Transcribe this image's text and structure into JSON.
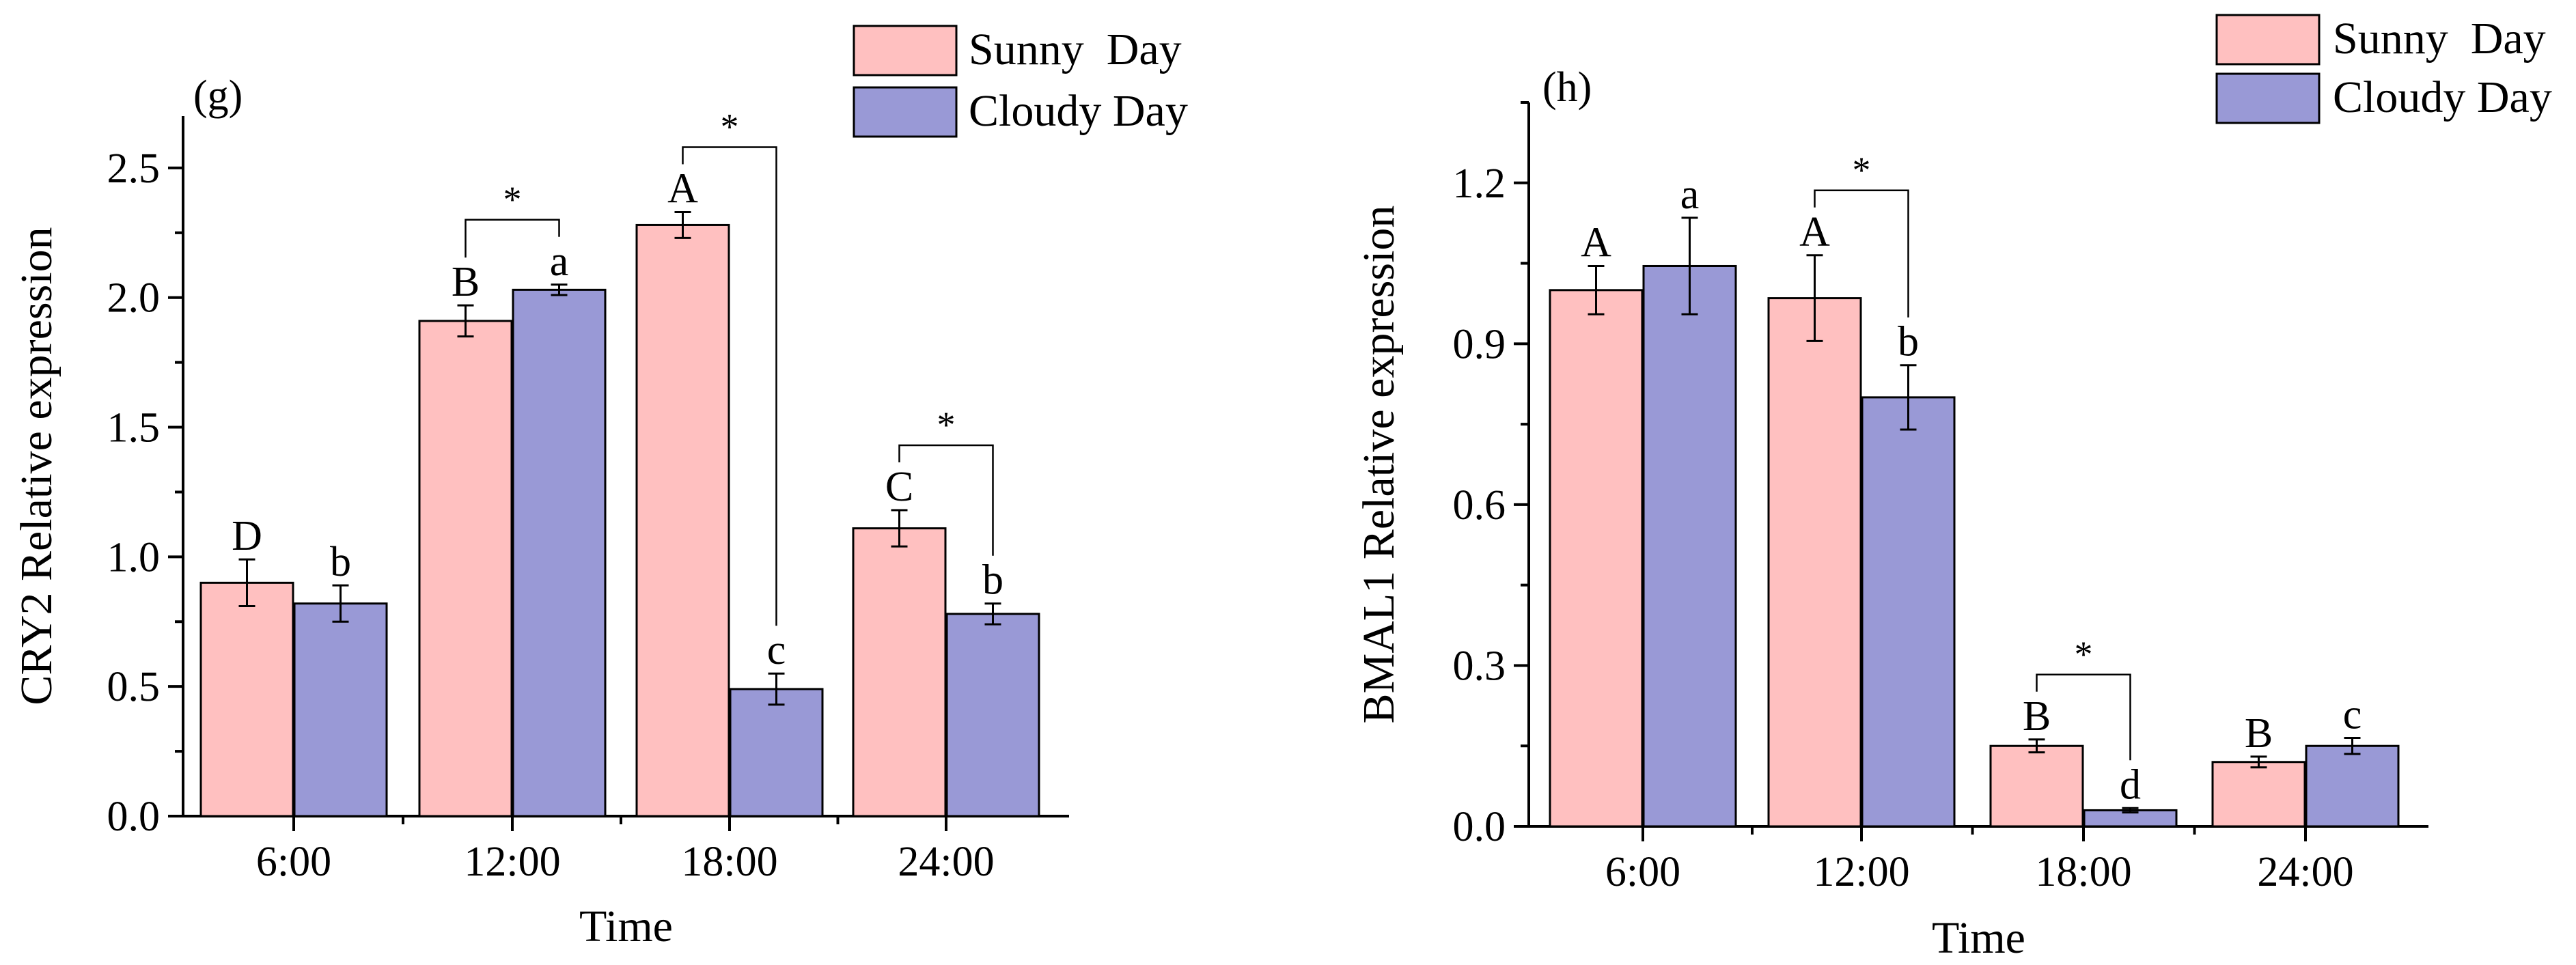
{
  "colors": {
    "sunny": "#FFC0C0",
    "cloudy": "#9999D6"
  },
  "chart_data": [
    {
      "type": "bar",
      "panel_label": "(g)",
      "title": "",
      "xlabel": "Time",
      "ylabel": "CRY2 Relative expression",
      "ylim": [
        0,
        2.7
      ],
      "yticks": [
        "0.0",
        "0.5",
        "1.0",
        "1.5",
        "2.0",
        "2.5"
      ],
      "ytick_values": [
        0,
        0.5,
        1.0,
        1.5,
        2.0,
        2.5
      ],
      "categories": [
        "6:00",
        "12:00",
        "18:00",
        "24:00"
      ],
      "legend_position": "top-right",
      "series": [
        {
          "name": "Sunny  Day",
          "values": [
            0.9,
            1.91,
            2.28,
            1.11
          ],
          "errors": [
            0.09,
            0.06,
            0.05,
            0.07
          ],
          "letters": [
            "D",
            "B",
            "A",
            "C"
          ]
        },
        {
          "name": "Cloudy Day",
          "values": [
            0.82,
            2.03,
            0.49,
            0.78
          ],
          "errors": [
            0.07,
            0.02,
            0.06,
            0.04
          ],
          "letters": [
            "b",
            "a",
            "c",
            "b"
          ]
        }
      ],
      "significance": [
        {
          "category_index": 1,
          "label": "*"
        },
        {
          "category_index": 2,
          "label": "*"
        },
        {
          "category_index": 3,
          "label": "*"
        }
      ]
    },
    {
      "type": "bar",
      "panel_label": "(h)",
      "title": "",
      "xlabel": "Time",
      "ylabel": "BMAL1 Relative expression",
      "ylim": [
        0,
        1.35
      ],
      "yticks": [
        "0.0",
        "0.3",
        "0.6",
        "0.9",
        "1.2"
      ],
      "ytick_values": [
        0,
        0.3,
        0.6,
        0.9,
        1.2
      ],
      "categories": [
        "6:00",
        "12:00",
        "18:00",
        "24:00"
      ],
      "legend_position": "top-right",
      "series": [
        {
          "name": "Sunny  Day",
          "values": [
            1.0,
            0.985,
            0.15,
            0.12
          ],
          "errors": [
            0.045,
            0.08,
            0.012,
            0.01
          ],
          "letters": [
            "A",
            "A",
            "B",
            "B"
          ]
        },
        {
          "name": "Cloudy Day",
          "values": [
            1.045,
            0.8,
            0.03,
            0.15
          ],
          "errors": [
            0.09,
            0.06,
            0.004,
            0.015
          ],
          "letters": [
            "a",
            "b",
            "d",
            "c"
          ]
        }
      ],
      "significance": [
        {
          "category_index": 1,
          "label": "*"
        },
        {
          "category_index": 2,
          "label": "*"
        }
      ]
    }
  ]
}
